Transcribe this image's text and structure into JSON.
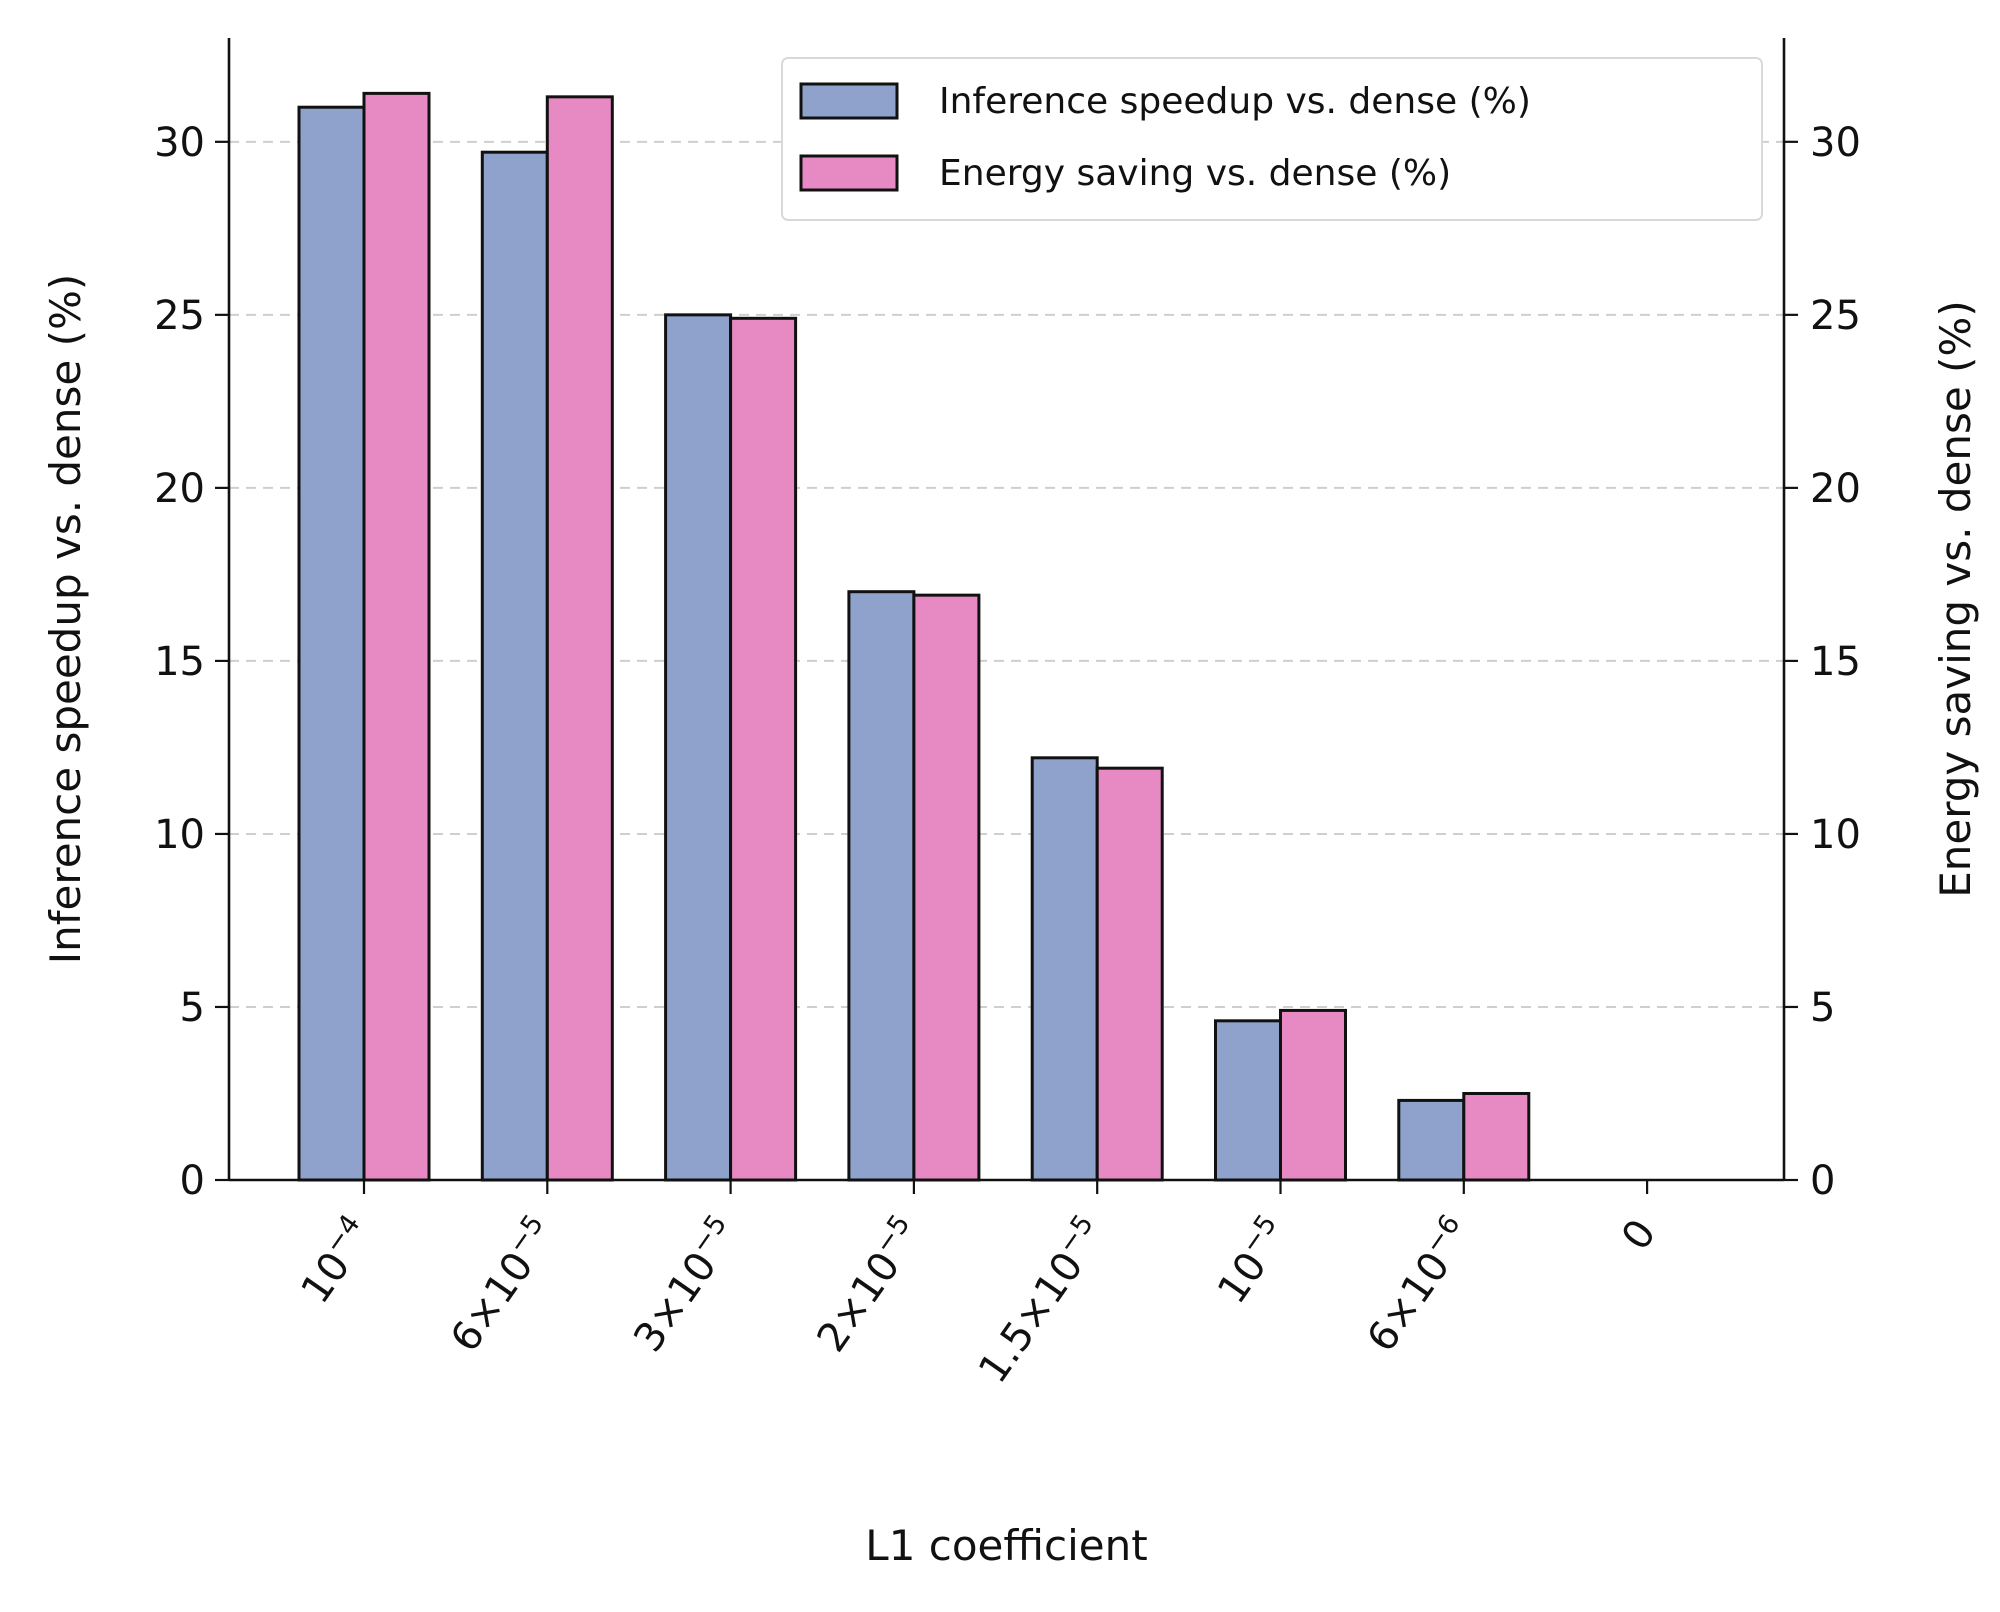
{
  "chart_data": {
    "type": "bar",
    "xlabel": "L1 coefficient",
    "ylabel_left": "Inference speedup vs. dense (%)",
    "ylabel_right": "Energy saving vs. dense (%)",
    "categories": [
      {
        "base": "10",
        "exp": "−4"
      },
      {
        "base": "6×10",
        "exp": "−5"
      },
      {
        "base": "3×10",
        "exp": "−5"
      },
      {
        "base": "2×10",
        "exp": "−5"
      },
      {
        "base": "1.5×10",
        "exp": "−5"
      },
      {
        "base": "10",
        "exp": "−5"
      },
      {
        "base": "6×10",
        "exp": "−6"
      },
      {
        "base": "0",
        "exp": ""
      }
    ],
    "series": [
      {
        "name": "Inference speedup vs. dense (%)",
        "color": "#8ea2cb",
        "values": [
          31.0,
          29.7,
          25.0,
          17.0,
          12.2,
          4.6,
          2.3,
          0.0
        ]
      },
      {
        "name": "Energy saving vs. dense (%)",
        "color": "#e78ac3",
        "values": [
          31.4,
          31.3,
          24.9,
          16.9,
          11.9,
          4.9,
          2.5,
          0.0
        ]
      }
    ],
    "ylim": [
      0,
      33
    ],
    "yticks": [
      0,
      5,
      10,
      15,
      20,
      25,
      30
    ],
    "grid": "horizontal dashed",
    "legend_position": "top-right"
  }
}
